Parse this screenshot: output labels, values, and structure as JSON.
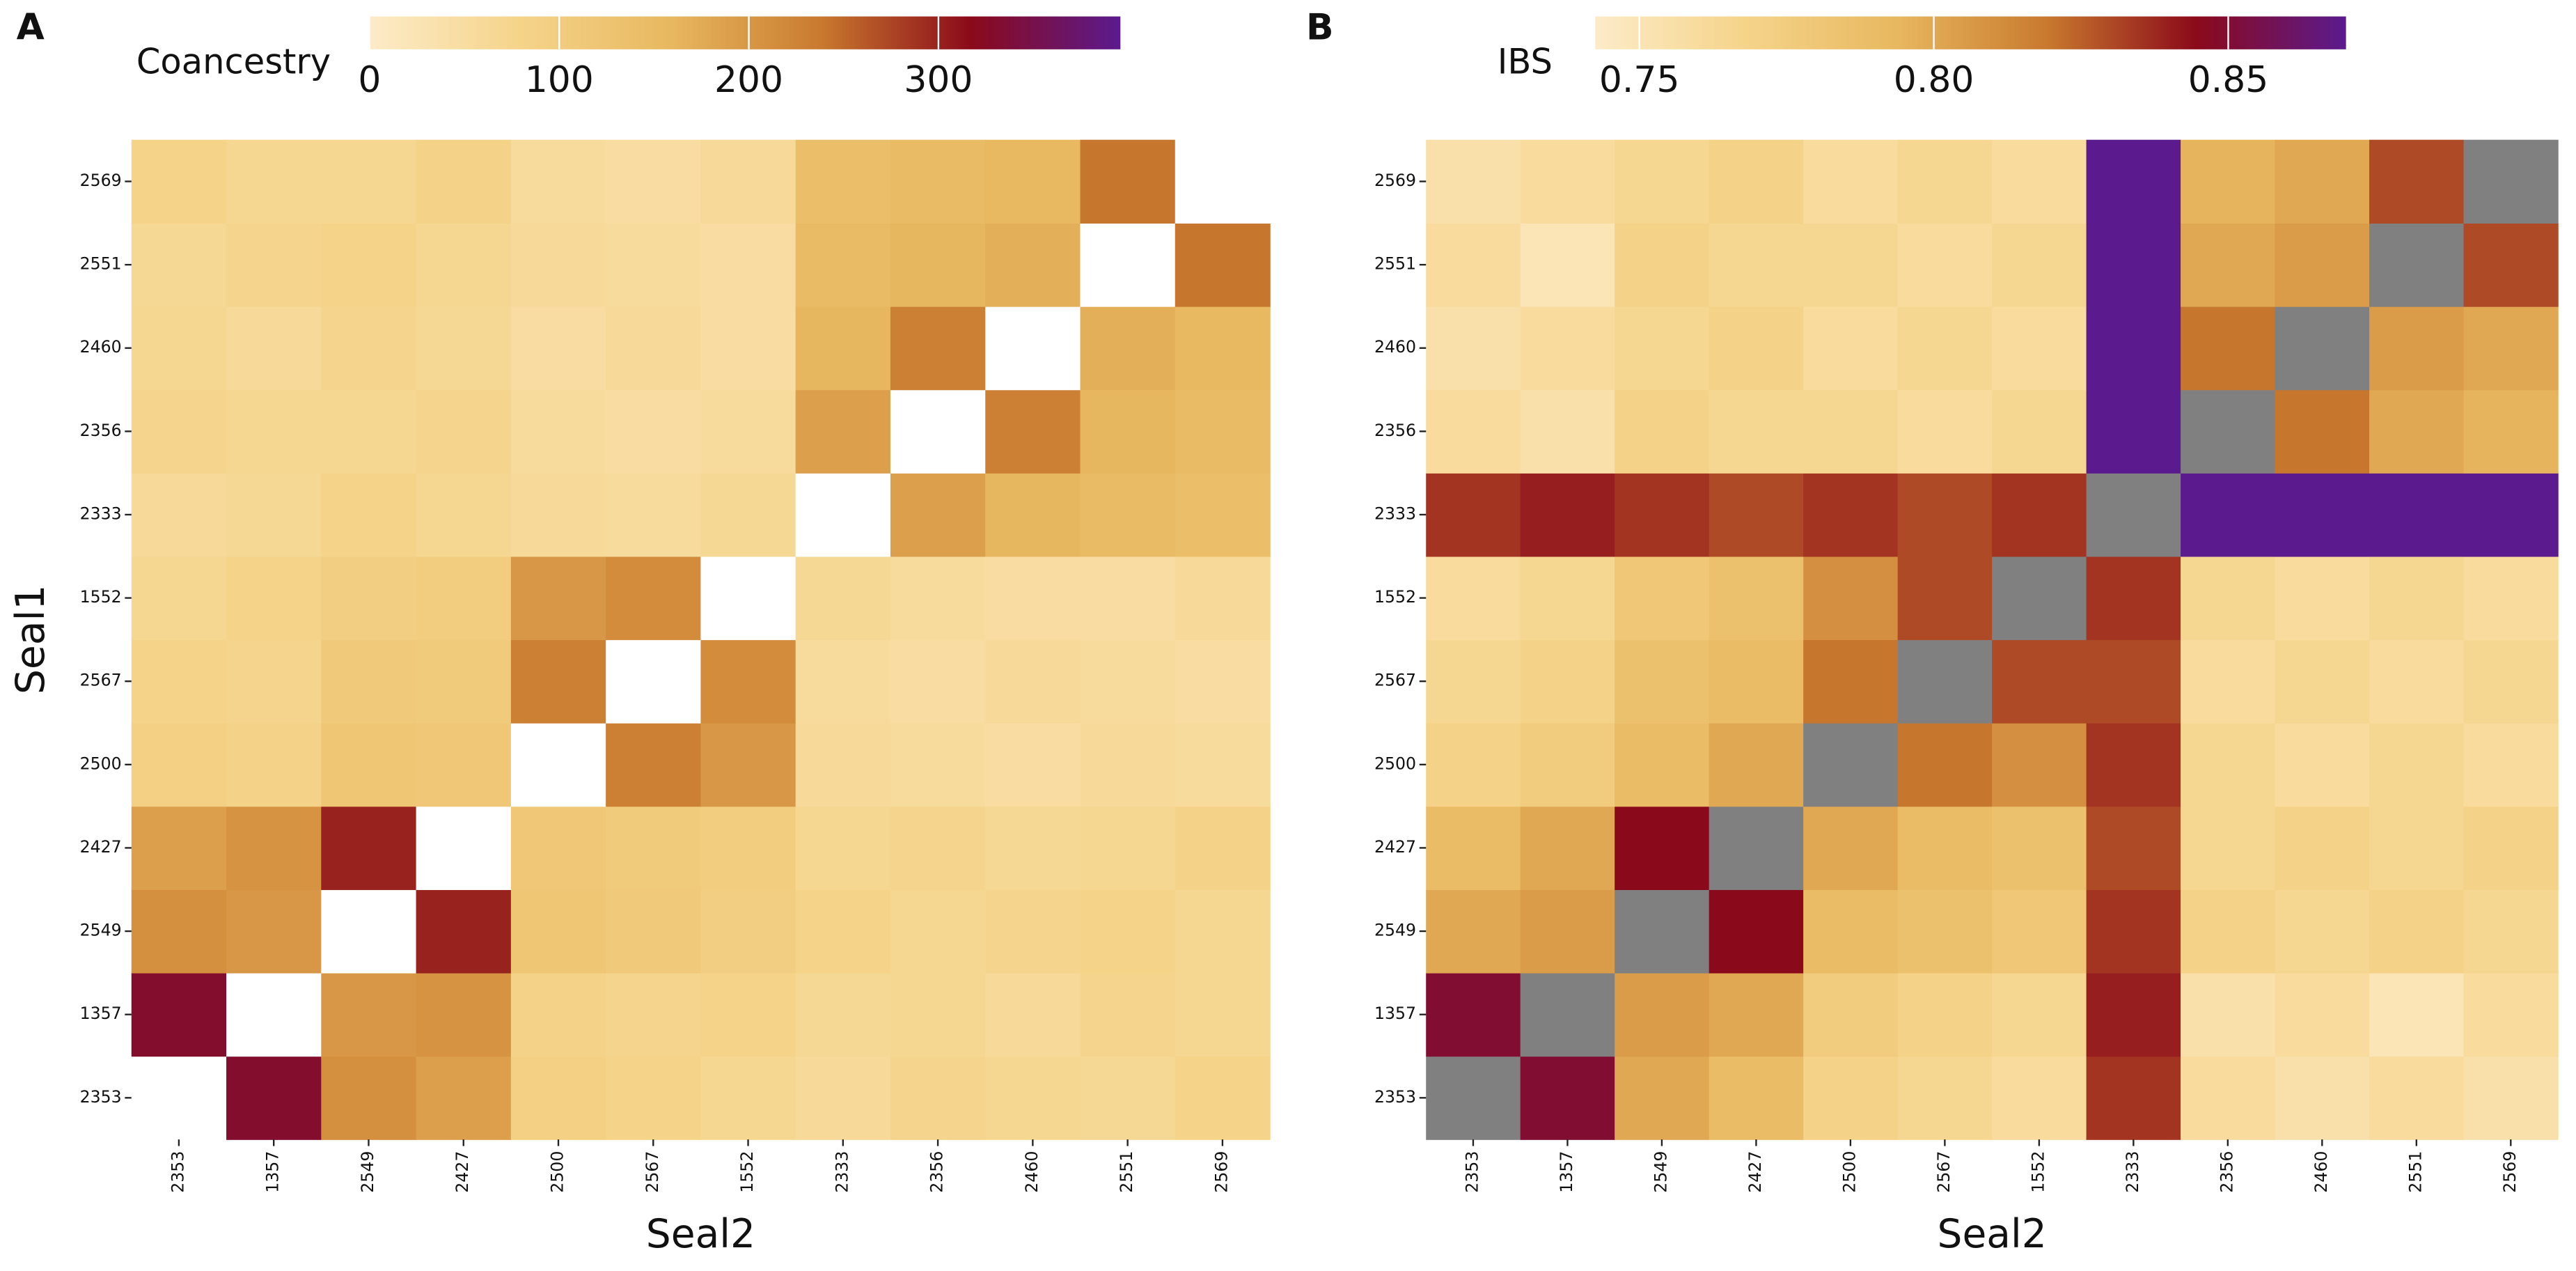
{
  "chart_data": [
    {
      "type": "heatmap",
      "panel": "A",
      "legend_title": "Coancestry",
      "xlabel": "Seal2",
      "ylabel": "Seal1",
      "categories": [
        "2353",
        "1357",
        "2549",
        "2427",
        "2500",
        "2567",
        "1552",
        "2333",
        "2356",
        "2460",
        "2551",
        "2569"
      ],
      "label_colors": [
        "#cc44cc",
        "#9900cc",
        "#e06080",
        "#e8a040",
        "#d8d020",
        "#c8e020",
        "#b0d020",
        "#00a050",
        "#20b050",
        "#40b040",
        "#30b070",
        "#60c040"
      ],
      "colorscale": [
        "#fdebc8",
        "#f5d48a",
        "#e8b860",
        "#c97a2e",
        "#8b0a1a",
        "#5b1a8e"
      ],
      "na_color": "#ffffff",
      "clim": [
        0,
        396
      ],
      "cticks": [
        0,
        100,
        200,
        300
      ],
      "values": [
        [
          null,
          330,
          210,
          190,
          90,
          80,
          70,
          60,
          75,
          70,
          65,
          80
        ],
        [
          330,
          null,
          200,
          205,
          85,
          75,
          80,
          65,
          70,
          60,
          75,
          70
        ],
        [
          210,
          200,
          null,
          300,
          120,
          110,
          95,
          80,
          70,
          75,
          80,
          70
        ],
        [
          190,
          205,
          300,
          null,
          115,
          105,
          100,
          70,
          75,
          65,
          70,
          85
        ],
        [
          90,
          85,
          120,
          115,
          null,
          230,
          200,
          60,
          55,
          50,
          60,
          55
        ],
        [
          80,
          75,
          110,
          105,
          230,
          null,
          215,
          55,
          50,
          60,
          55,
          50
        ],
        [
          70,
          80,
          95,
          100,
          200,
          215,
          null,
          65,
          55,
          50,
          50,
          60
        ],
        [
          60,
          65,
          80,
          70,
          60,
          55,
          65,
          null,
          190,
          160,
          150,
          140
        ],
        [
          75,
          70,
          70,
          75,
          55,
          50,
          55,
          190,
          null,
          230,
          160,
          150
        ],
        [
          70,
          60,
          75,
          65,
          50,
          60,
          50,
          160,
          230,
          null,
          170,
          155
        ],
        [
          65,
          75,
          80,
          70,
          60,
          55,
          50,
          150,
          160,
          170,
          null,
          240
        ],
        [
          80,
          70,
          70,
          85,
          55,
          50,
          60,
          140,
          150,
          155,
          240,
          null
        ]
      ]
    },
    {
      "type": "heatmap",
      "panel": "B",
      "legend_title": "IBS",
      "xlabel": "Seal2",
      "ylabel": "Seal1",
      "categories": [
        "2353",
        "1357",
        "2549",
        "2427",
        "2500",
        "2567",
        "1552",
        "2333",
        "2356",
        "2460",
        "2551",
        "2569"
      ],
      "label_colors": [
        "#cc44cc",
        "#9900cc",
        "#e06080",
        "#e8a040",
        "#d8d020",
        "#c8e020",
        "#b0d020",
        "#00a050",
        "#20b050",
        "#40b040",
        "#30b070",
        "#60c040"
      ],
      "colorscale": [
        "#fdebc8",
        "#f5d48a",
        "#e8b860",
        "#c97a2e",
        "#8b0a1a",
        "#5b1a8e"
      ],
      "na_color": "#808080",
      "clim": [
        0.7425,
        0.87
      ],
      "cticks": [
        0.75,
        {
          "value": 0.8,
          "label": "0.80"
        },
        0.85
      ],
      "values": [
        [
          null,
          0.85,
          0.8,
          0.79,
          0.77,
          0.765,
          0.76,
          0.835,
          0.76,
          0.755,
          0.76,
          0.755
        ],
        [
          0.85,
          null,
          0.805,
          0.8,
          0.775,
          0.77,
          0.765,
          0.84,
          0.755,
          0.76,
          0.75,
          0.76
        ],
        [
          0.8,
          0.805,
          null,
          0.845,
          0.79,
          0.785,
          0.78,
          0.835,
          0.77,
          0.765,
          0.77,
          0.765
        ],
        [
          0.79,
          0.8,
          0.845,
          null,
          0.8,
          0.79,
          0.785,
          0.83,
          0.765,
          0.77,
          0.765,
          0.77
        ],
        [
          0.77,
          0.775,
          0.79,
          0.8,
          null,
          0.82,
          0.81,
          0.835,
          0.765,
          0.76,
          0.765,
          0.76
        ],
        [
          0.765,
          0.77,
          0.785,
          0.79,
          0.82,
          null,
          0.83,
          0.83,
          0.76,
          0.765,
          0.76,
          0.765
        ],
        [
          0.76,
          0.765,
          0.78,
          0.785,
          0.81,
          0.83,
          null,
          0.835,
          0.765,
          0.76,
          0.765,
          0.76
        ],
        [
          0.835,
          0.84,
          0.835,
          0.83,
          0.835,
          0.83,
          0.835,
          null,
          0.87,
          0.87,
          0.87,
          0.87
        ],
        [
          0.76,
          0.755,
          0.77,
          0.765,
          0.765,
          0.76,
          0.765,
          0.87,
          null,
          0.82,
          0.8,
          0.795
        ],
        [
          0.755,
          0.76,
          0.765,
          0.77,
          0.76,
          0.765,
          0.76,
          0.87,
          0.82,
          null,
          0.805,
          0.8
        ],
        [
          0.76,
          0.75,
          0.77,
          0.765,
          0.765,
          0.76,
          0.765,
          0.87,
          0.8,
          0.805,
          null,
          0.83
        ],
        [
          0.755,
          0.76,
          0.765,
          0.77,
          0.76,
          0.765,
          0.76,
          0.87,
          0.795,
          0.8,
          0.83,
          null
        ]
      ]
    }
  ]
}
